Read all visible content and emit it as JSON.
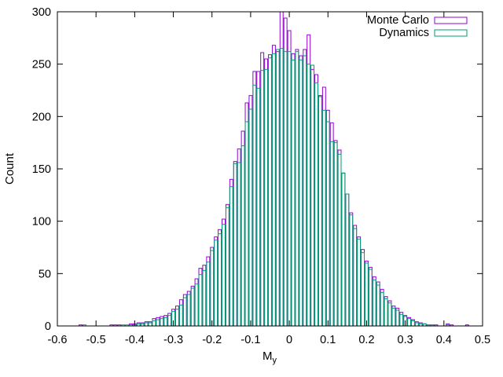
{
  "chart_data": {
    "type": "bar",
    "title": "",
    "xlabel": "M",
    "xlabel_subscript": "y",
    "ylabel": "Count",
    "xlim": [
      -0.6,
      0.5
    ],
    "ylim": [
      0,
      300
    ],
    "grid": false,
    "legend_position": "top-right",
    "x_ticks": [
      "-0.6",
      "-0.5",
      "-0.4",
      "-0.3",
      "-0.2",
      "-0.1",
      "0",
      "0.1",
      "0.2",
      "0.3",
      "0.4",
      "0.5"
    ],
    "y_ticks": [
      "0",
      "50",
      "100",
      "150",
      "200",
      "250",
      "300"
    ],
    "bin_centers": [
      -0.54,
      -0.53,
      -0.52,
      -0.51,
      -0.5,
      -0.49,
      -0.48,
      -0.47,
      -0.46,
      -0.45,
      -0.44,
      -0.43,
      -0.42,
      -0.41,
      -0.4,
      -0.39,
      -0.38,
      -0.37,
      -0.36,
      -0.35,
      -0.34,
      -0.33,
      -0.32,
      -0.31,
      -0.3,
      -0.29,
      -0.28,
      -0.27,
      -0.26,
      -0.25,
      -0.24,
      -0.23,
      -0.22,
      -0.21,
      -0.2,
      -0.19,
      -0.18,
      -0.17,
      -0.16,
      -0.15,
      -0.14,
      -0.13,
      -0.12,
      -0.11,
      -0.1,
      -0.09,
      -0.08,
      -0.07,
      -0.06,
      -0.05,
      -0.04,
      -0.03,
      -0.02,
      -0.01,
      0,
      0.01,
      0.02,
      0.03,
      0.04,
      0.05,
      0.06,
      0.07,
      0.08,
      0.09,
      0.1,
      0.11,
      0.12,
      0.13,
      0.14,
      0.15,
      0.16,
      0.17,
      0.18,
      0.19,
      0.2,
      0.21,
      0.22,
      0.23,
      0.24,
      0.25,
      0.26,
      0.27,
      0.28,
      0.29,
      0.3,
      0.31,
      0.32,
      0.33,
      0.34,
      0.35,
      0.36,
      0.37,
      0.38,
      0.39,
      0.4,
      0.41,
      0.42,
      0.43,
      0.44,
      0.45,
      0.46
    ],
    "series": [
      {
        "name": "Monte Carlo",
        "color": "#9400d3",
        "values": [
          1,
          0,
          0,
          0,
          0,
          0,
          0,
          0,
          1,
          1,
          1,
          0,
          0,
          2,
          2,
          3,
          3,
          4,
          4,
          7,
          8,
          9,
          10,
          12,
          16,
          19,
          25,
          30,
          33,
          38,
          45,
          55,
          58,
          66,
          75,
          85,
          92,
          102,
          116,
          140,
          157,
          169,
          186,
          213,
          220,
          243,
          243,
          261,
          255,
          259,
          268,
          262,
          300,
          294,
          282,
          260,
          264,
          258,
          264,
          278,
          245,
          240,
          220,
          228,
          206,
          194,
          177,
          168,
          146,
          126,
          108,
          96,
          85,
          73,
          62,
          56,
          47,
          42,
          35,
          28,
          24,
          19,
          17,
          13,
          10,
          8,
          6,
          4,
          3,
          2,
          1,
          1,
          1,
          0,
          0,
          2,
          1,
          0,
          0,
          0,
          1
        ]
      },
      {
        "name": "Dynamics",
        "color": "#009e73",
        "values": [
          0,
          1,
          0,
          0,
          0,
          0,
          0,
          0,
          0,
          0,
          0,
          1,
          1,
          1,
          1,
          2,
          2,
          3,
          3,
          5,
          6,
          7,
          8,
          10,
          14,
          16,
          20,
          27,
          30,
          36,
          40,
          49,
          53,
          61,
          72,
          82,
          88,
          97,
          113,
          133,
          155,
          156,
          172,
          195,
          207,
          230,
          227,
          244,
          245,
          256,
          260,
          264,
          265,
          262,
          262,
          254,
          262,
          254,
          258,
          250,
          249,
          232,
          219,
          206,
          195,
          176,
          175,
          164,
          146,
          126,
          106,
          93,
          83,
          70,
          60,
          54,
          44,
          39,
          32,
          26,
          22,
          17,
          15,
          11,
          9,
          7,
          5,
          3,
          2,
          2,
          1,
          1,
          0,
          0,
          0,
          1,
          0,
          0,
          0,
          0,
          0
        ]
      }
    ]
  }
}
